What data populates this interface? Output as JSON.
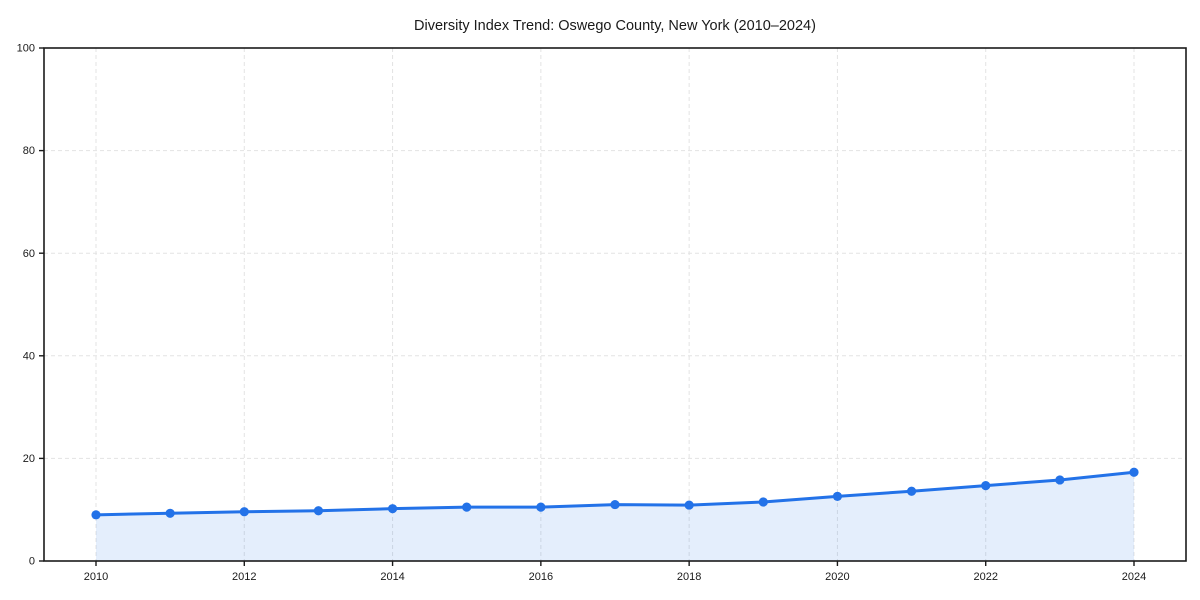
{
  "chart_data": {
    "type": "line",
    "title": "Diversity Index Trend: Oswego County, New York (2010–2024)",
    "x": [
      2010,
      2011,
      2012,
      2013,
      2014,
      2015,
      2016,
      2017,
      2018,
      2019,
      2020,
      2021,
      2022,
      2023,
      2024
    ],
    "series": [
      {
        "name": "Diversity Index",
        "values": [
          9.0,
          9.3,
          9.6,
          9.8,
          10.2,
          10.5,
          10.5,
          11.0,
          10.9,
          11.5,
          12.6,
          13.6,
          14.7,
          15.8,
          17.3
        ]
      }
    ],
    "xlabel": "",
    "ylabel": "",
    "ylim": [
      0,
      100
    ],
    "yticks": [
      0,
      20,
      40,
      60,
      80,
      100
    ],
    "xticks": [
      2010,
      2012,
      2014,
      2016,
      2018,
      2020,
      2022,
      2024
    ],
    "grid": "dashed",
    "legend_position": "none",
    "marker": "circle",
    "area_fill": true,
    "colors": {
      "line": "#2372e8",
      "marker": "#2372e8",
      "area": "rgba(35,114,232,0.12)",
      "grid": "#e3e3e3",
      "axis": "#1a1a1a",
      "text": "#1a1a1a"
    }
  }
}
